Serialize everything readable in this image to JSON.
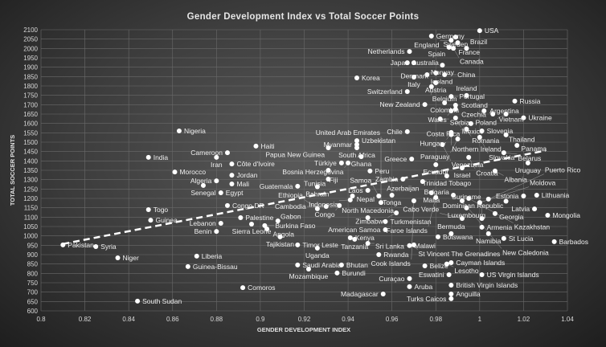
{
  "chart_data": {
    "type": "scatter",
    "title": "Gender Development Index vs Total Soccer Points",
    "xlabel": "GENDER DEVELOPMENT INDEX",
    "ylabel": "TOTAL SOCCER POINTS",
    "xlim": [
      0.8,
      1.04
    ],
    "ylim": [
      600,
      2100
    ],
    "xticks": [
      "0.8",
      "0.82",
      "0.84",
      "0.86",
      "0.88",
      "0.9",
      "0.92",
      "0.94",
      "0.96",
      "0.98",
      "1",
      "1.02",
      "1.04"
    ],
    "yticks": [
      "600",
      "650",
      "700",
      "750",
      "800",
      "850",
      "900",
      "950",
      "1000",
      "1050",
      "1100",
      "1150",
      "1200",
      "1250",
      "1300",
      "1350",
      "1400",
      "1450",
      "1500",
      "1550",
      "1600",
      "1650",
      "1700",
      "1750",
      "1800",
      "1850",
      "1900",
      "1950",
      "2000",
      "2050",
      "2100"
    ],
    "grid": true,
    "trendline": {
      "style": "dashed",
      "x": [
        0.81,
        1.03
      ],
      "y": [
        957,
        1455
      ]
    },
    "marker_color": "#ffffff",
    "points": [
      {
        "label": "USA",
        "x": 1.0,
        "y": 2095
      },
      {
        "label": "Germany",
        "x": 0.978,
        "y": 2066
      },
      {
        "label": "Sweden",
        "x": 0.989,
        "y": 2061
      },
      {
        "label": "England",
        "x": 0.987,
        "y": 2044
      },
      {
        "label": "France",
        "x": 0.99,
        "y": 2031
      },
      {
        "label": "Spain",
        "x": 0.986,
        "y": 2006
      },
      {
        "label": "Canada",
        "x": 0.988,
        "y": 2001
      },
      {
        "label": "Brazil",
        "x": 0.994,
        "y": 2001
      },
      {
        "label": "Netherlands",
        "x": 0.968,
        "y": 1984
      },
      {
        "label": "Australia",
        "x": 0.967,
        "y": 1924
      },
      {
        "label": "Japan",
        "x": 0.97,
        "y": 1924
      },
      {
        "label": "Norway",
        "x": 0.983,
        "y": 1911
      },
      {
        "label": "Denmark",
        "x": 0.98,
        "y": 1869
      },
      {
        "label": "Iceland",
        "x": 0.976,
        "y": 1860
      },
      {
        "label": "China",
        "x": 0.984,
        "y": 1860
      },
      {
        "label": "Italy",
        "x": 0.97,
        "y": 1847
      },
      {
        "label": "Korea",
        "x": 0.944,
        "y": 1843
      },
      {
        "label": "Austria",
        "x": 0.98,
        "y": 1817
      },
      {
        "label": "Belgium",
        "x": 0.978,
        "y": 1796
      },
      {
        "label": "Switzerland",
        "x": 0.967,
        "y": 1770
      },
      {
        "label": "Portugal",
        "x": 0.987,
        "y": 1744
      },
      {
        "label": "Ireland",
        "x": 0.994,
        "y": 1749
      },
      {
        "label": "Russia",
        "x": 1.016,
        "y": 1719
      },
      {
        "label": "Colombia",
        "x": 0.984,
        "y": 1710
      },
      {
        "label": "New Zealand",
        "x": 0.975,
        "y": 1701
      },
      {
        "label": "Scotland",
        "x": 0.989,
        "y": 1697
      },
      {
        "label": "Czechia",
        "x": 0.989,
        "y": 1676
      },
      {
        "label": "Wales",
        "x": 0.987,
        "y": 1667
      },
      {
        "label": "Argentina",
        "x": 1.002,
        "y": 1667
      },
      {
        "label": "Vietnam",
        "x": 1.006,
        "y": 1650
      },
      {
        "label": "Poland",
        "x": 1.012,
        "y": 1650
      },
      {
        "label": "Ukraine",
        "x": 1.02,
        "y": 1630
      },
      {
        "label": "Serbia",
        "x": 0.982,
        "y": 1624
      },
      {
        "label": "Mexico",
        "x": 0.989,
        "y": 1629
      },
      {
        "label": "Costa Rica",
        "x": 0.996,
        "y": 1599
      },
      {
        "label": "Romania",
        "x": 0.994,
        "y": 1569
      },
      {
        "label": "Slovenia",
        "x": 1.001,
        "y": 1560
      },
      {
        "label": "Hungary",
        "x": 0.987,
        "y": 1552
      },
      {
        "label": "Chile",
        "x": 0.967,
        "y": 1556
      },
      {
        "label": "Northern Ireland",
        "x": 0.987,
        "y": 1540
      },
      {
        "label": "Thailand",
        "x": 1.012,
        "y": 1539
      },
      {
        "label": "Slovakia",
        "x": 1.0,
        "y": 1526
      },
      {
        "label": "Paraguay",
        "x": 0.99,
        "y": 1517
      },
      {
        "label": "Panama",
        "x": 1.017,
        "y": 1483
      },
      {
        "label": "Venezuela",
        "x": 0.983,
        "y": 1487
      },
      {
        "label": "Belarus",
        "x": 1.011,
        "y": 1444
      },
      {
        "label": "Croatia",
        "x": 0.995,
        "y": 1419
      },
      {
        "label": "Greece",
        "x": 0.969,
        "y": 1410
      },
      {
        "label": "Uruguay",
        "x": 1.022,
        "y": 1389
      },
      {
        "label": "Ecuador",
        "x": 0.98,
        "y": 1380
      },
      {
        "label": "Israel",
        "x": 0.992,
        "y": 1363
      },
      {
        "label": "Albania",
        "x": 1.007,
        "y": 1346
      },
      {
        "label": "Peru",
        "x": 0.95,
        "y": 1346
      },
      {
        "label": "Trinidad Tobago",
        "x": 0.985,
        "y": 1320
      },
      {
        "label": "Zambia",
        "x": 0.965,
        "y": 1303
      },
      {
        "label": "Azerbaijan",
        "x": 0.974,
        "y": 1290
      },
      {
        "label": "Uzbekistan",
        "x": 0.944,
        "y": 1508
      },
      {
        "label": "Myanmar",
        "x": 0.944,
        "y": 1487
      },
      {
        "label": "South Africa",
        "x": 0.944,
        "y": 1470
      },
      {
        "label": "Ghana",
        "x": 0.946,
        "y": 1423
      },
      {
        "label": "Türkiye",
        "x": 0.937,
        "y": 1389
      },
      {
        "label": "Bosnia Herzegovina",
        "x": 0.94,
        "y": 1389
      },
      {
        "label": "Fiji",
        "x": 0.931,
        "y": 1350
      },
      {
        "label": "Tunisia",
        "x": 0.931,
        "y": 1303
      },
      {
        "label": "Guatemala",
        "x": 0.917,
        "y": 1265
      },
      {
        "label": "Bahrain",
        "x": 0.926,
        "y": 1262
      },
      {
        "label": "Haiti",
        "x": 0.898,
        "y": 1479
      },
      {
        "label": "Papua New Guinea",
        "x": 0.931,
        "y": 1470
      },
      {
        "label": "Cameroon",
        "x": 0.885,
        "y": 1444
      },
      {
        "label": "Iran",
        "x": 0.88,
        "y": 1419
      },
      {
        "label": "Côte d'Ivoire",
        "x": 0.887,
        "y": 1384
      },
      {
        "label": "Jordan",
        "x": 0.887,
        "y": 1324
      },
      {
        "label": "Mali",
        "x": 0.887,
        "y": 1277
      },
      {
        "label": "Nigeria",
        "x": 0.863,
        "y": 1560
      },
      {
        "label": "India",
        "x": 0.849,
        "y": 1419
      },
      {
        "label": "Morocco",
        "x": 0.861,
        "y": 1341
      },
      {
        "label": "Algeria",
        "x": 0.88,
        "y": 1294
      },
      {
        "label": "Senegal",
        "x": 0.874,
        "y": 1269
      },
      {
        "label": "Egypt",
        "x": 0.882,
        "y": 1230
      },
      {
        "label": "Congo DR",
        "x": 0.885,
        "y": 1162
      },
      {
        "label": "Togo",
        "x": 0.849,
        "y": 1140
      },
      {
        "label": "Guinea",
        "x": 0.85,
        "y": 1084
      },
      {
        "label": "Palestine",
        "x": 0.891,
        "y": 1097
      },
      {
        "label": "Lebanon",
        "x": 0.882,
        "y": 1067
      },
      {
        "label": "Sierra Leone",
        "x": 0.896,
        "y": 1063
      },
      {
        "label": "Burkina Faso",
        "x": 0.902,
        "y": 1055
      },
      {
        "label": "Gabon",
        "x": 0.908,
        "y": 1080
      },
      {
        "label": "Angola",
        "x": 0.903,
        "y": 1037
      },
      {
        "label": "Benin",
        "x": 0.88,
        "y": 1024
      },
      {
        "label": "Tajikistan",
        "x": 0.909,
        "y": 995
      },
      {
        "label": "Timor Leste",
        "x": 0.917,
        "y": 952
      },
      {
        "label": "Uganda",
        "x": 0.926,
        "y": 935
      },
      {
        "label": "Liberia",
        "x": 0.871,
        "y": 892
      },
      {
        "label": "Guinea-Bissau",
        "x": 0.867,
        "y": 836
      },
      {
        "label": "Niger",
        "x": 0.835,
        "y": 883
      },
      {
        "label": "Syria",
        "x": 0.825,
        "y": 943
      },
      {
        "label": "Pakistan",
        "x": 0.81,
        "y": 952
      },
      {
        "label": "Saudi Arabia",
        "x": 0.917,
        "y": 845
      },
      {
        "label": "Mozambique",
        "x": 0.922,
        "y": 823
      },
      {
        "label": "Comoros",
        "x": 0.892,
        "y": 724
      },
      {
        "label": "South Sudan",
        "x": 0.844,
        "y": 652
      },
      {
        "label": "Bhutan",
        "x": 0.937,
        "y": 845
      },
      {
        "label": "Burundi",
        "x": 0.935,
        "y": 802
      },
      {
        "label": "Rwanda",
        "x": 0.954,
        "y": 900
      },
      {
        "label": "Kenya",
        "x": 0.941,
        "y": 990
      },
      {
        "label": "Tanzania",
        "x": 0.943,
        "y": 982
      },
      {
        "label": "Sri Lanka",
        "x": 0.949,
        "y": 960
      },
      {
        "label": "Malawi",
        "x": 0.968,
        "y": 948
      },
      {
        "label": "St Vincent The Grenadines",
        "x": 0.97,
        "y": 952
      },
      {
        "label": "Belize",
        "x": 0.975,
        "y": 840
      },
      {
        "label": "Cayman Islands",
        "x": 0.987,
        "y": 857
      },
      {
        "label": "Lesotho",
        "x": 0.985,
        "y": 850
      },
      {
        "label": "Eswatini",
        "x": 0.986,
        "y": 793
      },
      {
        "label": "US Virgin Islands",
        "x": 1.001,
        "y": 793
      },
      {
        "label": "Curaçao",
        "x": 0.968,
        "y": 772
      },
      {
        "label": "Aruba",
        "x": 0.968,
        "y": 729
      },
      {
        "label": "British Virgin Islands",
        "x": 0.987,
        "y": 737
      },
      {
        "label": "Madagascar",
        "x": 0.956,
        "y": 690
      },
      {
        "label": "Anguilla",
        "x": 0.987,
        "y": 690
      },
      {
        "label": "Turks Caicos",
        "x": 0.987,
        "y": 665
      },
      {
        "label": "Botswana",
        "x": 0.981,
        "y": 995
      },
      {
        "label": "Bermuda",
        "x": 0.987,
        "y": 1012
      },
      {
        "label": "Armenia",
        "x": 1.001,
        "y": 1046
      },
      {
        "label": "Namibia",
        "x": 1.004,
        "y": 1012
      },
      {
        "label": "St Lucia",
        "x": 1.011,
        "y": 986
      },
      {
        "label": "Barbados",
        "x": 1.034,
        "y": 969
      },
      {
        "label": "American Samoa",
        "x": 0.957,
        "y": 1033
      },
      {
        "label": "Mongolia",
        "x": 1.031,
        "y": 1110
      },
      {
        "label": "Latvia",
        "x": 1.025,
        "y": 1144
      },
      {
        "label": "Lithuania",
        "x": 1.026,
        "y": 1217
      },
      {
        "label": "Estonia",
        "x": 1.02,
        "y": 1213
      },
      {
        "label": "Dominican Republic",
        "x": 1.012,
        "y": 1185
      },
      {
        "label": "Georgia",
        "x": 1.007,
        "y": 1119
      },
      {
        "label": "Luxembourg",
        "x": 0.994,
        "y": 1149
      },
      {
        "label": "Suriname",
        "x": 1.001,
        "y": 1093
      },
      {
        "label": "Cabo Verde",
        "x": 0.992,
        "y": 1093
      },
      {
        "label": "Turkmenistan",
        "x": 0.957,
        "y": 1076
      },
      {
        "label": "North Macedonia",
        "x": 0.949,
        "y": 1097
      },
      {
        "label": "Zimbabwe",
        "x": 0.962,
        "y": 1123
      },
      {
        "label": "Laos",
        "x": 0.949,
        "y": 1243
      },
      {
        "label": "Nepal",
        "x": 0.942,
        "y": 1213
      },
      {
        "label": "Indonesia",
        "x": 0.941,
        "y": 1192
      },
      {
        "label": "Congo",
        "x": 0.936,
        "y": 1162
      },
      {
        "label": "Cambodia",
        "x": 0.93,
        "y": 1157
      },
      {
        "label": "Ethiopia",
        "x": 0.926,
        "y": 1145
      },
      {
        "label": "Tonga",
        "x": 0.96,
        "y": 1217
      },
      {
        "label": "Samoa",
        "x": 0.954,
        "y": 1213
      },
      {
        "label": "Malta",
        "x": 0.978,
        "y": 1230
      },
      {
        "label": "Bulgaria",
        "x": 0.988,
        "y": 1217
      },
      {
        "label": "Faroe Islands",
        "x": 0.98,
        "y": 1205
      },
      {
        "label": "Kazakhstan",
        "x": 0.995,
        "y": 1200
      },
      {
        "label": "New Caledonia",
        "x": 0.992,
        "y": 1187
      },
      {
        "label": "Moldova",
        "x": 1.0,
        "y": 1178
      },
      {
        "label": "Puerto Rico",
        "x": 1.004,
        "y": 1196
      },
      {
        "label": "Cook Islands",
        "x": 0.97,
        "y": 1187
      },
      {
        "label": "United Arab Emirates",
        "x": 0.955,
        "y": 1178
      }
    ]
  }
}
